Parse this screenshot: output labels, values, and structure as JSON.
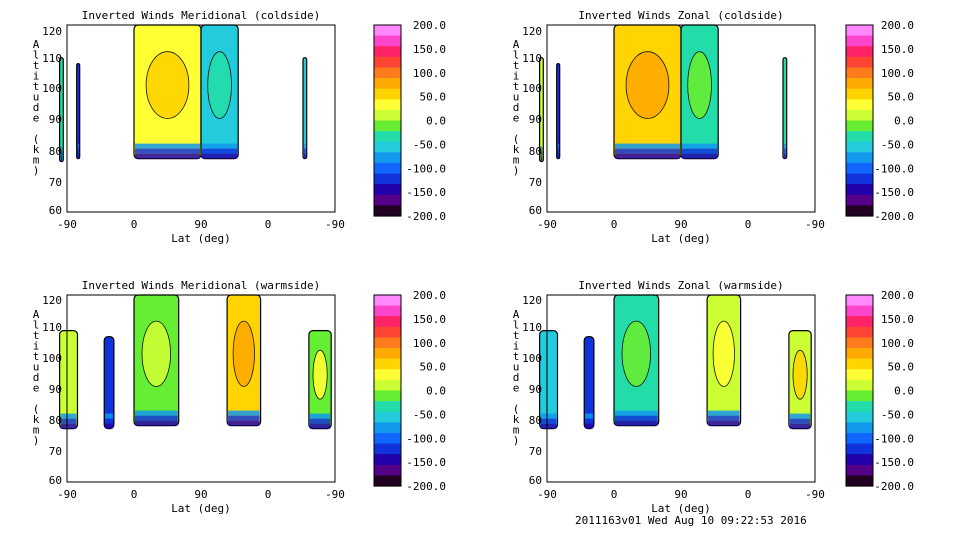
{
  "colorbar": {
    "labels": [
      "200.0",
      "150.0",
      "100.0",
      "50.0",
      "0.0",
      "-50.0",
      "-100.0",
      "-150.0",
      "-200.0"
    ],
    "colors": [
      "#ff88ff",
      "#ff44cc",
      "#ff2266",
      "#ff4433",
      "#ff7a1a",
      "#ffaa00",
      "#ffd400",
      "#ffff33",
      "#ccff33",
      "#66ee33",
      "#22ddaa",
      "#22ccdd",
      "#1199ee",
      "#1166ff",
      "#1133dd",
      "#2200aa",
      "#550088",
      "#220022"
    ]
  },
  "footer": "2011163v01 Wed Aug 10 09:22:53 2016",
  "chart_data": [
    {
      "type": "heatmap",
      "title": "Inverted Winds Meridional (coldside)",
      "xlabel": "Lat (deg)",
      "ylabel": "Altitude (km)",
      "x_ticks": [
        "-90",
        "0",
        "90",
        "0",
        "-90"
      ],
      "y_ticks": [
        "60",
        "70",
        "80",
        "90",
        "100",
        "110",
        "120"
      ],
      "ylim": [
        58,
        121
      ],
      "colorbar_range": [
        -200,
        200
      ],
      "regions": [
        {
          "x": [
            -100,
            -95
          ],
          "y": [
            75,
            110
          ],
          "value": -40
        },
        {
          "x": [
            -77,
            -73
          ],
          "y": [
            76,
            108
          ],
          "value": -130
        },
        {
          "x": [
            0,
            90
          ],
          "y": [
            76,
            121
          ],
          "value": 40
        },
        {
          "x": [
            90,
            140
          ],
          "y": [
            76,
            121
          ],
          "value": -60
        },
        {
          "x": [
            227,
            232
          ],
          "y": [
            76,
            110
          ],
          "value": -60
        }
      ]
    },
    {
      "type": "heatmap",
      "title": "Inverted Winds Zonal (coldside)",
      "xlabel": "Lat (deg)",
      "ylabel": "Altitude (km)",
      "x_ticks": [
        "-90",
        "0",
        "90",
        "0",
        "-90"
      ],
      "y_ticks": [
        "60",
        "70",
        "80",
        "90",
        "100",
        "110",
        "120"
      ],
      "ylim": [
        58,
        121
      ],
      "colorbar_range": [
        -200,
        200
      ],
      "regions": [
        {
          "x": [
            -100,
            -95
          ],
          "y": [
            75,
            110
          ],
          "value": 10
        },
        {
          "x": [
            -77,
            -73
          ],
          "y": [
            76,
            108
          ],
          "value": -140
        },
        {
          "x": [
            0,
            90
          ],
          "y": [
            76,
            121
          ],
          "value": 50
        },
        {
          "x": [
            90,
            140
          ],
          "y": [
            76,
            121
          ],
          "value": -40
        },
        {
          "x": [
            227,
            232
          ],
          "y": [
            76,
            110
          ],
          "value": -40
        }
      ]
    },
    {
      "type": "heatmap",
      "title": "Inverted Winds Meridional (warmside)",
      "xlabel": "Lat (deg)",
      "ylabel": "Altitude (km)",
      "x_ticks": [
        "-90",
        "0",
        "90",
        "0",
        "-90"
      ],
      "y_ticks": [
        "60",
        "70",
        "80",
        "90",
        "100",
        "110",
        "120"
      ],
      "ylim": [
        58,
        121
      ],
      "colorbar_range": [
        -200,
        200
      ],
      "regions": [
        {
          "x": [
            -100,
            -76
          ],
          "y": [
            76,
            109
          ],
          "value": 10
        },
        {
          "x": [
            -40,
            -27
          ],
          "y": [
            76,
            107
          ],
          "value": -140
        },
        {
          "x": [
            0,
            60
          ],
          "y": [
            77,
            121
          ],
          "value": -20
        },
        {
          "x": [
            125,
            170
          ],
          "y": [
            77,
            121
          ],
          "value": 60
        },
        {
          "x": [
            235,
            265
          ],
          "y": [
            76,
            109
          ],
          "value": 0
        }
      ]
    },
    {
      "type": "heatmap",
      "title": "Inverted Winds Zonal (warmside)",
      "xlabel": "Lat (deg)",
      "ylabel": "Altitude (km)",
      "x_ticks": [
        "-90",
        "0",
        "90",
        "0",
        "-90"
      ],
      "y_ticks": [
        "60",
        "70",
        "80",
        "90",
        "100",
        "110",
        "120"
      ],
      "ylim": [
        58,
        121
      ],
      "colorbar_range": [
        -200,
        200
      ],
      "regions": [
        {
          "x": [
            -100,
            -76
          ],
          "y": [
            76,
            109
          ],
          "value": -50
        },
        {
          "x": [
            -40,
            -27
          ],
          "y": [
            76,
            107
          ],
          "value": -120
        },
        {
          "x": [
            0,
            60
          ],
          "y": [
            77,
            121
          ],
          "value": -30
        },
        {
          "x": [
            125,
            170
          ],
          "y": [
            77,
            121
          ],
          "value": 10
        },
        {
          "x": [
            235,
            265
          ],
          "y": [
            76,
            109
          ],
          "value": 20
        }
      ]
    }
  ]
}
